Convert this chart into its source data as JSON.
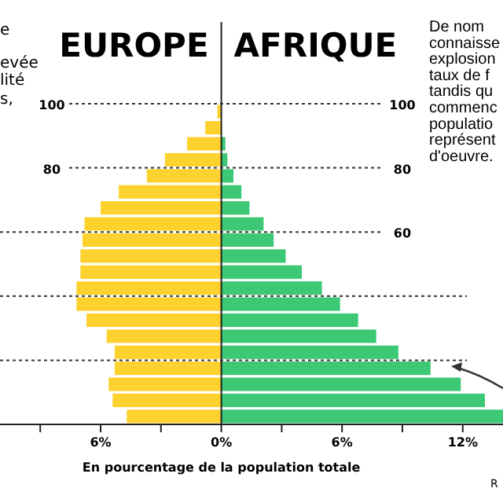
{
  "chart_data": {
    "type": "bar",
    "orientation": "horizontal",
    "xlabel": "En pourcentage de la population totale",
    "x": [
      97.5,
      92.5,
      87.5,
      82.5,
      77.5,
      72.5,
      67.5,
      62.5,
      57.5,
      52.5,
      47.5,
      42.5,
      37.5,
      32.5,
      27.5,
      22.5,
      17.5,
      12.5,
      7.5,
      2.5
    ],
    "series": [
      {
        "name": "EUROPE",
        "color": "#fdd22f",
        "values": [
          -0.2,
          -0.8,
          -1.7,
          -2.8,
          -3.7,
          -5.1,
          -6.0,
          -6.8,
          -6.9,
          -7.0,
          -7.0,
          -7.2,
          -7.2,
          -6.7,
          -5.7,
          -5.3,
          -5.3,
          -5.6,
          -5.4,
          -4.7
        ]
      },
      {
        "name": "AFRIQUE",
        "color": "#3cc874",
        "values": [
          0,
          0,
          0.2,
          0.3,
          0.6,
          1.0,
          1.4,
          2.1,
          2.6,
          3.2,
          4.0,
          5.0,
          5.9,
          6.8,
          7.7,
          8.8,
          10.4,
          11.9,
          13.1,
          14.0
        ]
      }
    ],
    "stacked": true,
    "xlim": [
      -11,
      14
    ],
    "xticks": [
      {
        "value": -9,
        "label": null
      },
      {
        "value": -6,
        "label": "6%"
      },
      {
        "value": -3,
        "label": null
      },
      {
        "value": 0,
        "label": "0%"
      },
      {
        "value": 3,
        "label": null
      },
      {
        "value": 6,
        "label": "6%"
      },
      {
        "value": 9,
        "label": null
      },
      {
        "value": 12,
        "label": "12%"
      }
    ],
    "ylim": [
      0,
      100
    ],
    "yticks": [
      {
        "value": 100,
        "label": "100"
      },
      {
        "value": 80,
        "label": "80"
      },
      {
        "value": 60,
        "label": "60"
      },
      {
        "value": 40,
        "label": null
      },
      {
        "value": 20,
        "label": null
      }
    ],
    "grid": "y",
    "annotations": [
      "e",
      "evée",
      "lité",
      "s,",
      "De nom",
      "connaisse",
      "explosion",
      "taux de f",
      "tandis qu",
      "commenc",
      "populatio",
      "représent",
      "d'oeuvre.",
      "R"
    ]
  }
}
